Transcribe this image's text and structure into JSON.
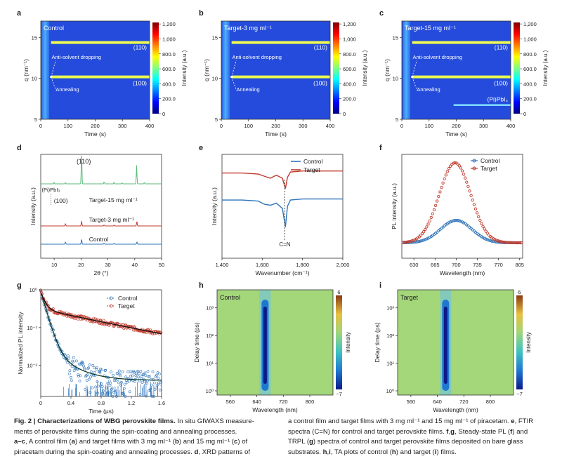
{
  "panel_letters": [
    "a",
    "b",
    "c",
    "d",
    "e",
    "f",
    "g",
    "h",
    "i"
  ],
  "giwaxs": {
    "xlabel": "Time (s)",
    "ylabel": "q (nm⁻¹)",
    "xticks": [
      "0",
      "100",
      "200",
      "300",
      "400"
    ],
    "yticks": [
      "5",
      "10",
      "15"
    ],
    "cbar_label": "Intensity (a.u.)",
    "cbar_ticks": [
      "0",
      "200.0",
      "400.0",
      "600.0",
      "800.0",
      "1,000",
      "1,200"
    ],
    "anti_solvent": "Anti-solvent dropping",
    "annealing": "Annealing",
    "peak_110": "(110)",
    "peak_100": "(100)",
    "pbi_label": "(Pi)PbI₃",
    "panels": [
      {
        "title": "Control"
      },
      {
        "title": "Target-3 mg ml⁻¹"
      },
      {
        "title": "Target-15 mg ml⁻¹"
      }
    ]
  },
  "captions": {
    "left": [
      "<b>Fig. 2 | Characterizations of WBG perovskite films.</b> In situ GIWAXS measure-",
      "ments of perovskite films during the spin-coating and annealing processes.",
      "<b>a–c</b>, A control film (<b>a</b>) and target films with 3 mg ml⁻¹ (<b>b</b>) and 15 mg ml⁻¹ (<b>c</b>) of",
      "piracetam during the spin-coating and annealing processes. <b>d</b>, XRD patterns of"
    ],
    "right": [
      "a control film and target films with 3 mg ml⁻¹ and 15 mg ml⁻¹ of piracetam. <b>e</b>, FTIR",
      "spectra (C=N) for control and target perovskite films. <b>f</b>,<b>g</b>, Steady-state PL (<b>f</b>) and",
      "TRPL (<b>g</b>) spectra of control and target perovskite films deposited on bare glass",
      "substrates. <b>h</b>,<b>i</b>, TA plots of control (<b>h</b>) and target (<b>i</b>) films."
    ]
  },
  "chart_data": [
    {
      "type": "line",
      "id": "d",
      "xlabel": "2θ (°)",
      "ylabel": "Intensity (a.u.)",
      "xlim": [
        5,
        50
      ],
      "xticks": [
        10,
        20,
        30,
        40,
        50
      ],
      "series": [
        {
          "name": "Target-15 mg ml⁻¹",
          "color": "#5bb97a",
          "peaks": [
            [
              9.9,
              0.05
            ],
            [
              14.2,
              0.04
            ],
            [
              20.2,
              1.0
            ],
            [
              28.6,
              0.06
            ],
            [
              32.3,
              0.05
            ],
            [
              35.3,
              0.03
            ],
            [
              40.7,
              0.6
            ],
            [
              43.6,
              0.04
            ]
          ]
        },
        {
          "name": "Target-3 mg ml⁻¹",
          "color": "#c0392b",
          "peaks": [
            [
              14.2,
              0.15
            ],
            [
              20.2,
              0.3
            ],
            [
              28.6,
              0.06
            ],
            [
              32.3,
              0.05
            ],
            [
              40.8,
              0.3
            ]
          ]
        },
        {
          "name": "Control",
          "color": "#2e73b8",
          "peaks": [
            [
              14.2,
              0.18
            ],
            [
              20.2,
              0.4
            ],
            [
              28.6,
              0.07
            ],
            [
              32.3,
              0.06
            ],
            [
              40.8,
              0.18
            ]
          ]
        }
      ],
      "annotations": [
        "(110)",
        "(Pi)PbI₃",
        "(100)"
      ]
    },
    {
      "type": "line",
      "id": "e",
      "xlabel": "Wavenumber (cm⁻¹)",
      "ylabel": "Intensity (a.u.)",
      "xlim": [
        1400,
        2000
      ],
      "xticks": [
        "1,400",
        "1,600",
        "1,800",
        "2,000"
      ],
      "series": [
        {
          "name": "Control",
          "color": "#2e73b8",
          "x": [
            1400,
            1500,
            1580,
            1610,
            1640,
            1670,
            1700,
            1715,
            1725,
            1740,
            1800,
            1900,
            2000
          ],
          "y": [
            0.56,
            0.56,
            0.55,
            0.52,
            0.51,
            0.53,
            0.48,
            0.3,
            0.5,
            0.56,
            0.57,
            0.57,
            0.57
          ]
        },
        {
          "name": "Target",
          "color": "#c0392b",
          "x": [
            1400,
            1500,
            1580,
            1610,
            1640,
            1670,
            1700,
            1715,
            1725,
            1740,
            1800,
            1900,
            2000
          ],
          "y": [
            0.82,
            0.82,
            0.81,
            0.79,
            0.77,
            0.8,
            0.77,
            0.67,
            0.78,
            0.83,
            0.84,
            0.84,
            0.84
          ]
        }
      ],
      "annotations": [
        "C=N"
      ]
    },
    {
      "type": "scatter",
      "id": "f",
      "xlabel": "Wavelength (nm)",
      "ylabel": "PL intensity (a.u.)",
      "xlim": [
        610,
        810
      ],
      "xticks": [
        630,
        665,
        700,
        735,
        770,
        805
      ],
      "series": [
        {
          "name": "Control",
          "color": "#2e73b8",
          "center": 700,
          "amplitude": 0.28,
          "width": 26
        },
        {
          "name": "Target",
          "color": "#c0392b",
          "center": 698,
          "amplitude": 1.0,
          "width": 26
        }
      ]
    },
    {
      "type": "scatter",
      "id": "g",
      "xlabel": "Time (µs)",
      "ylabel": "Normalized PL intensity",
      "xlim": [
        0,
        1.6
      ],
      "xticks": [
        "0",
        "0.4",
        "0.8",
        "1.2",
        "1.6"
      ],
      "yscale": "log",
      "yticks": [
        "10⁻²",
        "10⁻¹",
        "10⁰"
      ],
      "series": [
        {
          "name": "Control",
          "color": "#2e73b8",
          "tau_fast_us": 0.06,
          "floor": 0.004
        },
        {
          "name": "Target",
          "color": "#c0392b",
          "tau_fast_us": 0.05,
          "amp_slow": 0.3,
          "tau_slow_us": 1.0
        }
      ]
    },
    {
      "type": "heatmap",
      "id": "h",
      "title": "Control",
      "xlabel": "Wavelength (nm)",
      "ylabel": "Delay time (ps)",
      "xticks": [
        560,
        640,
        720,
        800
      ],
      "yticks": [
        "10⁰",
        "10¹",
        "10²",
        "10³"
      ],
      "cbar_label": "Intensity",
      "cbar_ticks": [
        "6",
        "−7"
      ],
      "bleach_center_nm": 665
    },
    {
      "type": "heatmap",
      "id": "i",
      "title": "Target",
      "xlabel": "Wavelength (nm)",
      "ylabel": "Delay time (ps)",
      "xticks": [
        560,
        640,
        720,
        800
      ],
      "yticks": [
        "10⁰",
        "10¹",
        "10²",
        "10³"
      ],
      "cbar_label": "Intensity",
      "cbar_ticks": [
        "6",
        "−7"
      ],
      "bleach_center_nm": 665
    }
  ]
}
